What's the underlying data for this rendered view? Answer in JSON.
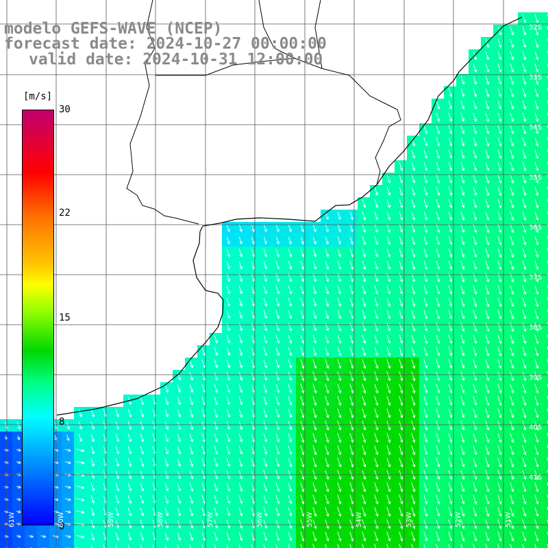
{
  "header": {
    "line1": "modelo GEFS-WAVE (NCEP)",
    "line2": "forecast date: 2024-10-27 00:00:00",
    "line3": "valid date: 2024-10-31 12:00:00"
  },
  "colorbar": {
    "unit": "[m/s]",
    "ticks": [
      "30",
      "22",
      "15",
      "8",
      "0"
    ],
    "tick_values": [
      30,
      22,
      15,
      8,
      0
    ]
  },
  "axes": {
    "lon_labels": [
      "61W",
      "60W",
      "59W",
      "58W",
      "57W",
      "56W",
      "55W",
      "54W",
      "53W",
      "52W",
      "51W"
    ],
    "lat_labels": [
      "32S",
      "33S",
      "34S",
      "35S",
      "36S",
      "37S",
      "38S",
      "39S",
      "40S",
      "41S"
    ]
  },
  "colors": {
    "land": "#ffffff",
    "coast": "#000000",
    "grid": "#555555",
    "arrows": "#ffffff",
    "title": "#8a8a8a"
  }
}
